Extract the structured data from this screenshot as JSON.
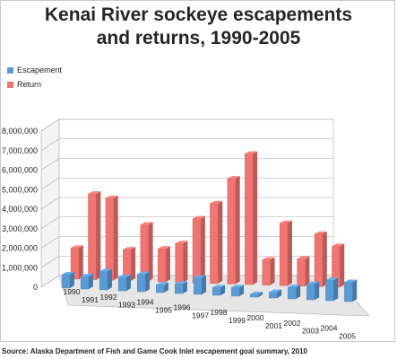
{
  "title_line1": "Kenai River sockeye escapements",
  "title_line2": "and returns, 1990-2005",
  "source": "Source: Alaska Department of Fish and Game Cook Inlet escapement goal summary, 2010",
  "colors": {
    "escapement": "#5b9bd5",
    "return": "#f07470",
    "grid": "#a6a6a6"
  },
  "chart_data": {
    "type": "bar",
    "title": "Kenai River sockeye escapements and returns, 1990-2005",
    "legend_position": "top-left",
    "grid": true,
    "categories": [
      "1990",
      "1991",
      "1992",
      "1993",
      "1994",
      "1995",
      "1996",
      "1997",
      "1998",
      "1999",
      "2000",
      "2001",
      "2002",
      "2003",
      "2004",
      "2005"
    ],
    "ylim": [
      0,
      8000000
    ],
    "y_ticks": [
      "0",
      "1,000,000",
      "2,000,000",
      "3,000,000",
      "4,000,000",
      "5,000,000",
      "6,000,000",
      "7,000,000",
      "8,000,000"
    ],
    "series": [
      {
        "name": "Escapement",
        "values": [
          700000,
          650000,
          950000,
          700000,
          900000,
          400000,
          500000,
          850000,
          400000,
          450000,
          150000,
          300000,
          600000,
          800000,
          1050000,
          1000000
        ]
      },
      {
        "name": "Return",
        "values": [
          1600000,
          4400000,
          4200000,
          1600000,
          2900000,
          1700000,
          2000000,
          3300000,
          4100000,
          5400000,
          6700000,
          1300000,
          3200000,
          1400000,
          2700000,
          2100000
        ]
      }
    ]
  }
}
